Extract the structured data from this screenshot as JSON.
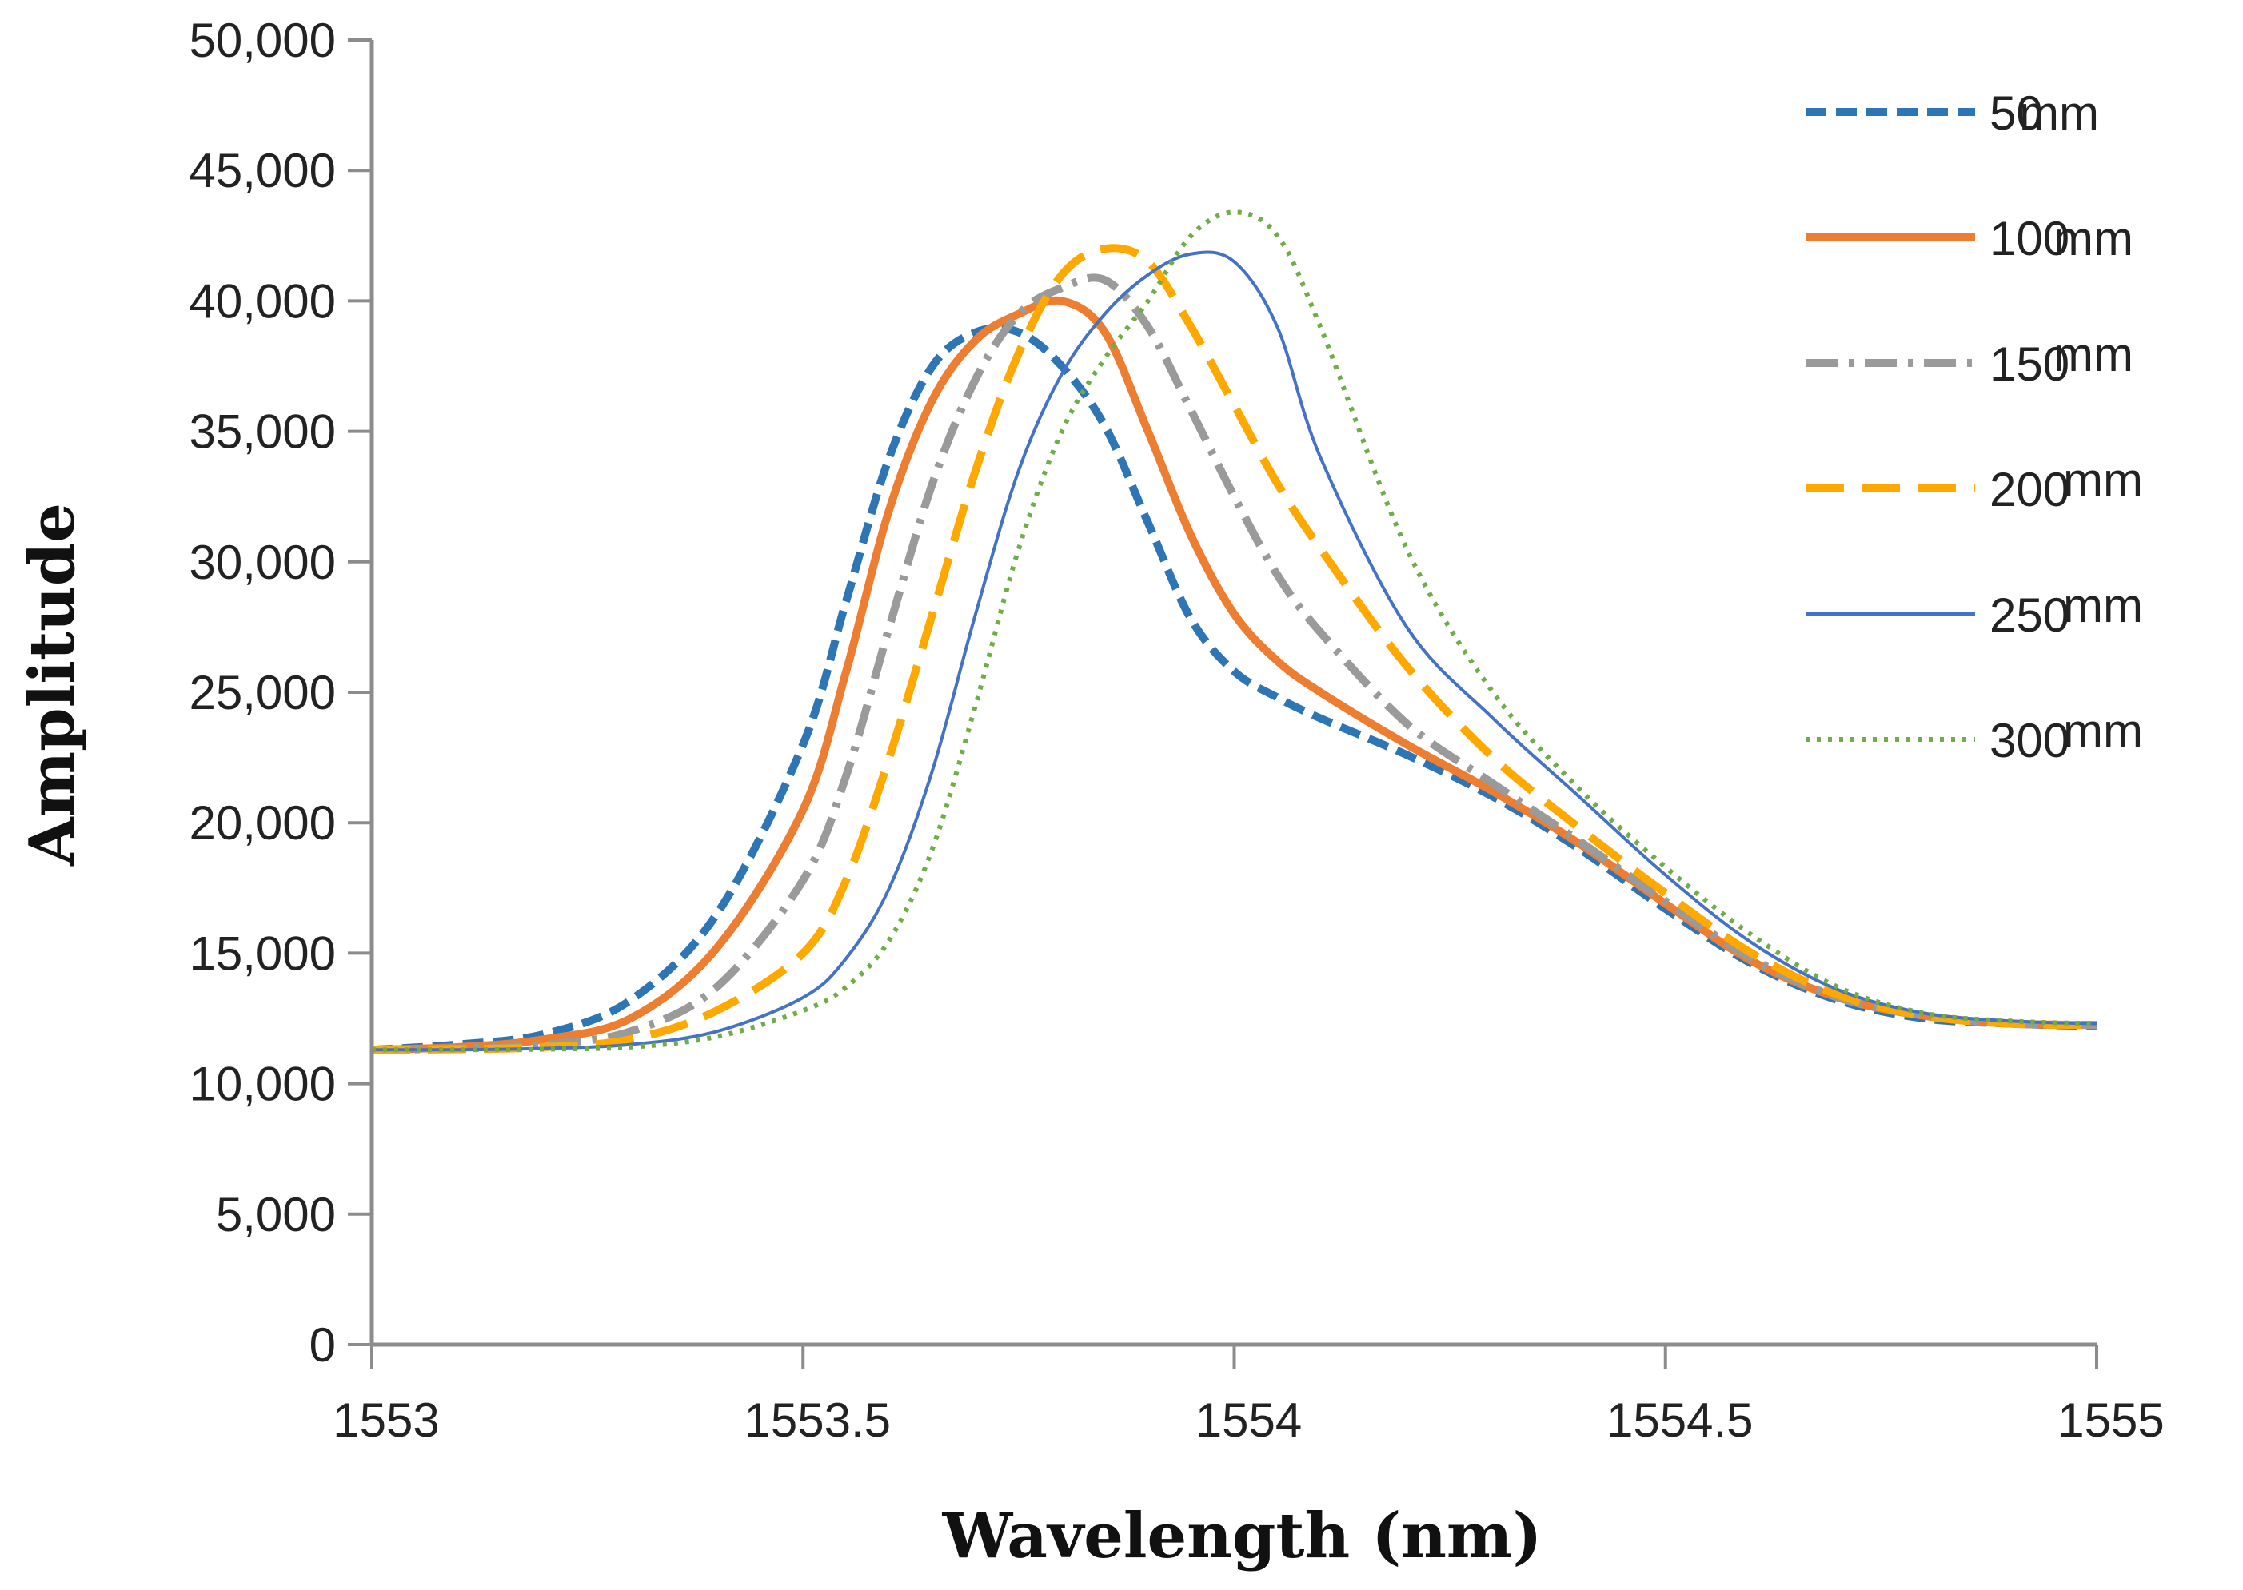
{
  "chart_data": {
    "type": "line",
    "title": "",
    "xlabel": "Wavelength (nm)",
    "ylabel": "Amplitude",
    "xlim": [
      1553,
      1555
    ],
    "ylim": [
      0,
      50000
    ],
    "x_ticks": [
      1553,
      1553.5,
      1554,
      1554.5,
      1555
    ],
    "x_tick_labels": [
      "1553",
      "1553.5",
      "1554",
      "1554.5",
      "1555"
    ],
    "y_ticks": [
      0,
      5000,
      10000,
      15000,
      20000,
      25000,
      30000,
      35000,
      40000,
      45000,
      50000
    ],
    "y_tick_labels": [
      "0",
      "5,000",
      "10,000",
      "15,000",
      "20,000",
      "25,000",
      "30,000",
      "35,000",
      "40,000",
      "45,000",
      "50,000"
    ],
    "grid": false,
    "legend_position": "right",
    "series": [
      {
        "name": "50 mm",
        "label_value": "50",
        "label_unit": "mm",
        "color": "#2e75b6",
        "dash": "26 12",
        "x": [
          1553,
          1553.1,
          1553.2,
          1553.3,
          1553.4,
          1553.5,
          1553.55,
          1553.6,
          1553.65,
          1553.7,
          1553.75,
          1553.8,
          1553.85,
          1553.9,
          1553.95,
          1554,
          1554.05,
          1554.1,
          1554.2,
          1554.3,
          1554.4,
          1554.5,
          1554.6,
          1554.7,
          1554.8,
          1554.9,
          1555
        ],
        "y": [
          11300,
          11500,
          11900,
          13200,
          16500,
          23000,
          28500,
          34000,
          37500,
          38800,
          38800,
          37500,
          35200,
          31500,
          27800,
          25800,
          24800,
          24000,
          22600,
          21000,
          19000,
          16700,
          14600,
          13200,
          12500,
          12300,
          12200
        ]
      },
      {
        "name": "100 mm",
        "label_value": "100",
        "label_unit": "mm",
        "color": "#ed7d31",
        "dash": "",
        "x": [
          1553,
          1553.1,
          1553.2,
          1553.3,
          1553.4,
          1553.5,
          1553.55,
          1553.6,
          1553.65,
          1553.7,
          1553.75,
          1553.8,
          1553.85,
          1553.9,
          1553.95,
          1554,
          1554.05,
          1554.1,
          1554.2,
          1554.3,
          1554.4,
          1554.5,
          1554.6,
          1554.7,
          1554.8,
          1554.9,
          1555
        ],
        "y": [
          11300,
          11400,
          11700,
          12500,
          15200,
          20500,
          25800,
          32000,
          36200,
          38500,
          39500,
          40000,
          38800,
          35000,
          31000,
          28000,
          26200,
          25000,
          23000,
          21200,
          19200,
          16900,
          14700,
          13300,
          12600,
          12300,
          12250
        ]
      },
      {
        "name": "150 mm",
        "label_value": "150",
        "label_unit": "mm",
        "color": "#9a9a9a",
        "dash": "40 14 6 14",
        "x": [
          1553,
          1553.1,
          1553.2,
          1553.3,
          1553.4,
          1553.5,
          1553.55,
          1553.6,
          1553.65,
          1553.7,
          1553.75,
          1553.8,
          1553.85,
          1553.9,
          1553.95,
          1554,
          1554.05,
          1554.1,
          1554.2,
          1554.3,
          1554.4,
          1554.5,
          1554.6,
          1554.7,
          1554.8,
          1554.9,
          1555
        ],
        "y": [
          11300,
          11350,
          11500,
          12000,
          13700,
          17800,
          21800,
          27500,
          33000,
          37000,
          39500,
          40500,
          40800,
          39000,
          35800,
          32500,
          29500,
          27300,
          23800,
          21500,
          19300,
          17000,
          14800,
          13300,
          12600,
          12300,
          12250
        ]
      },
      {
        "name": "200 mm",
        "label_value": "200",
        "label_unit": "mm",
        "color": "#ffa800",
        "dash": "48 22",
        "x": [
          1553,
          1553.1,
          1553.2,
          1553.3,
          1553.4,
          1553.5,
          1553.55,
          1553.6,
          1553.65,
          1553.7,
          1553.75,
          1553.8,
          1553.85,
          1553.9,
          1553.95,
          1554,
          1554.05,
          1554.1,
          1554.2,
          1554.3,
          1554.4,
          1554.5,
          1554.6,
          1554.7,
          1554.8,
          1554.9,
          1555
        ],
        "y": [
          11300,
          11320,
          11400,
          11700,
          12800,
          15000,
          17800,
          22500,
          28000,
          33500,
          38000,
          41000,
          42000,
          41500,
          39000,
          36000,
          33000,
          30500,
          26000,
          22500,
          19800,
          17300,
          15000,
          13400,
          12600,
          12300,
          12250
        ]
      },
      {
        "name": "250 mm",
        "label_value": "250",
        "label_unit": "mm",
        "color": "#4472c4",
        "dash": "",
        "x": [
          1553,
          1553.1,
          1553.2,
          1553.3,
          1553.4,
          1553.5,
          1553.55,
          1553.6,
          1553.65,
          1553.7,
          1553.75,
          1553.8,
          1553.85,
          1553.9,
          1553.95,
          1554,
          1554.05,
          1554.1,
          1554.2,
          1554.3,
          1554.4,
          1554.5,
          1554.6,
          1554.7,
          1554.8,
          1554.9,
          1555
        ],
        "y": [
          11300,
          11300,
          11350,
          11500,
          12000,
          13300,
          14800,
          17500,
          22000,
          28000,
          33500,
          37200,
          39500,
          41000,
          41800,
          41500,
          39000,
          34000,
          27500,
          24000,
          21000,
          18000,
          15400,
          13600,
          12700,
          12400,
          12300
        ]
      },
      {
        "name": "300 mm",
        "label_value": "300",
        "label_unit": "mm",
        "color": "#70ad47",
        "dash": "5 9",
        "x": [
          1553,
          1553.1,
          1553.2,
          1553.3,
          1553.4,
          1553.5,
          1553.55,
          1553.6,
          1553.65,
          1553.7,
          1553.75,
          1553.8,
          1553.85,
          1553.9,
          1553.95,
          1554,
          1554.05,
          1554.1,
          1554.2,
          1554.3,
          1554.4,
          1554.5,
          1554.6,
          1554.7,
          1554.8,
          1554.9,
          1555
        ],
        "y": [
          11300,
          11300,
          11320,
          11400,
          11800,
          12800,
          13700,
          15500,
          19000,
          24500,
          30500,
          35000,
          37800,
          40000,
          42500,
          43400,
          42500,
          39000,
          30500,
          25000,
          21300,
          18300,
          15700,
          13700,
          12700,
          12400,
          12300
        ]
      }
    ]
  }
}
